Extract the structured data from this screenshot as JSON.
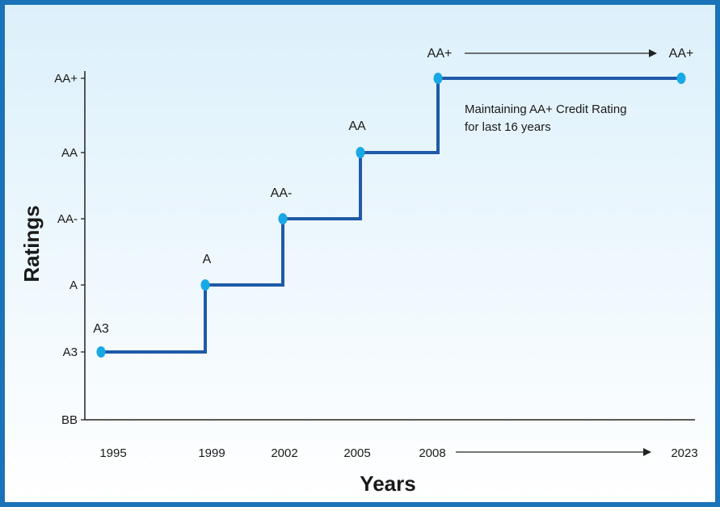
{
  "chart_data": {
    "type": "line",
    "step": true,
    "xlabel": "Years",
    "ylabel": "Ratings",
    "y_categories": [
      "BB",
      "A3",
      "A",
      "AA-",
      "AA",
      "AA+"
    ],
    "x_ticks": [
      "1995",
      "1999",
      "2002",
      "2005",
      "2008",
      "2023"
    ],
    "points": [
      {
        "year": "1995",
        "rating": "A3",
        "label": "A3"
      },
      {
        "year": "1999",
        "rating": "A",
        "label": "A"
      },
      {
        "year": "2002",
        "rating": "AA-",
        "label": "AA-"
      },
      {
        "year": "2005",
        "rating": "AA",
        "label": "AA"
      },
      {
        "year": "2008",
        "rating": "AA+",
        "label": "AA+"
      },
      {
        "year": "2023",
        "rating": "AA+",
        "label": "AA+"
      }
    ],
    "annotation": {
      "line1": "Maintaining AA+ Credit Rating",
      "line2": "for last 16 years"
    },
    "grid": false
  },
  "colors": {
    "border": "#1a72b8",
    "line": "#1e5aa8",
    "marker": "#19a8e6",
    "axis": "#222222",
    "bg_top": "#dcf0fb",
    "bg_bottom": "#ffffff"
  }
}
